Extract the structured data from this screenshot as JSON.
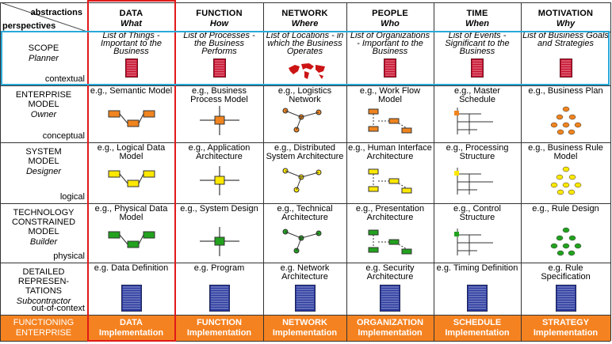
{
  "corner": {
    "abstractions": "abstractions",
    "perspectives": "perspectives"
  },
  "columns": [
    {
      "title": "DATA",
      "sub": "What"
    },
    {
      "title": "FUNCTION",
      "sub": "How"
    },
    {
      "title": "NETWORK",
      "sub": "Where"
    },
    {
      "title": "PEOPLE",
      "sub": "Who"
    },
    {
      "title": "TIME",
      "sub": "When"
    },
    {
      "title": "MOTIVATION",
      "sub": "Why"
    }
  ],
  "rows": [
    {
      "label": "SCOPE",
      "role": "Planner",
      "level": "contextual",
      "cells": [
        "List of Things - Important to the Business",
        "List of Processes - the Business Performs",
        "List of Locations - in which the Business Operates",
        "List of Organizations - Important to the Business",
        "List of Events - Significant to the Business",
        "List of Business Goals and Strategies"
      ]
    },
    {
      "label": "ENTERPRISE MODEL",
      "role": "Owner",
      "level": "conceptual",
      "cells": [
        "e.g., Semantic Model",
        "e.g., Business Process Model",
        "e.g., Logistics Network",
        "e.g., Work Flow Model",
        "e.g., Master Schedule",
        "e.g., Business Plan"
      ]
    },
    {
      "label": "SYSTEM MODEL",
      "role": "Designer",
      "level": "logical",
      "cells": [
        "e.g., Logical Data Model",
        "e.g., Application Architecture",
        "e.g., Distributed System Architecture",
        "e.g., Human Interface Architecture",
        "e.g., Processing Structure",
        "e.g., Business Rule Model"
      ]
    },
    {
      "label": "TECHNOLOGY CONSTRAINED MODEL",
      "role": "Builder",
      "level": "physical",
      "cells": [
        "e.g., Physical Data Model",
        "e.g., System Design",
        "e.g., Technical Architecture",
        "e.g., Presentation Architecture",
        "e.g., Control Structure",
        "e.g., Rule Design"
      ]
    },
    {
      "label": "DETAILED REPRESEN-TATIONS",
      "role": "Subcontractor",
      "level": "out-of-context",
      "cells": [
        "e.g. Data Definition",
        "e.g. Program",
        "e.g. Network Architecture",
        "e.g. Security Architecture",
        "e.g. Timing Definition",
        "e.g. Rule Specification"
      ]
    }
  ],
  "footer": {
    "left": [
      "FUNCTIONING",
      "ENTERPRISE"
    ],
    "cells": [
      {
        "top": "DATA",
        "bottom": "Implementation"
      },
      {
        "top": "FUNCTION",
        "bottom": "Implementation"
      },
      {
        "top": "NETWORK",
        "bottom": "Implementation"
      },
      {
        "top": "ORGANIZATION",
        "bottom": "Implementation"
      },
      {
        "top": "SCHEDULE",
        "bottom": "Implementation"
      },
      {
        "top": "STRATEGY",
        "bottom": "Implementation"
      }
    ]
  },
  "colors": {
    "footer": "#f58220",
    "highlight_column": "#e0191a",
    "highlight_row": "#2aa8d8",
    "grid": "#333333"
  }
}
